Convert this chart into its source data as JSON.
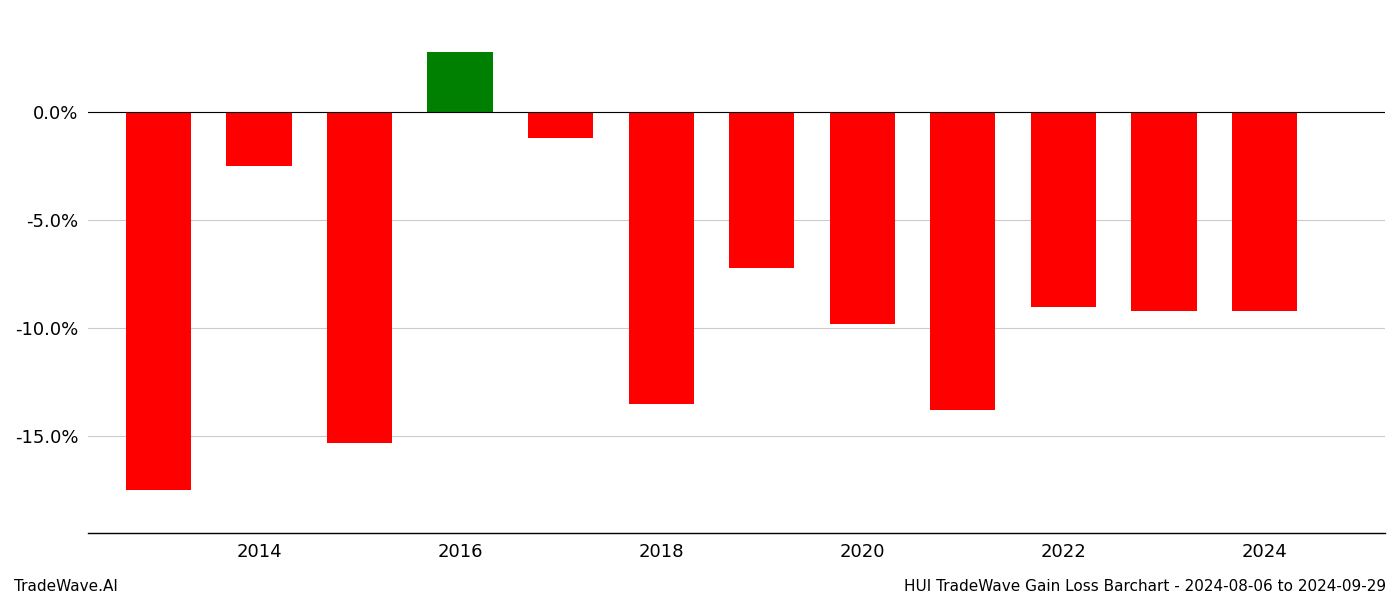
{
  "years": [
    2013,
    2014,
    2015,
    2016,
    2017,
    2018,
    2019,
    2020,
    2021,
    2022,
    2023,
    2024
  ],
  "values": [
    -17.5,
    -2.5,
    -15.3,
    2.8,
    -1.2,
    -13.5,
    -7.2,
    -9.8,
    -13.8,
    -9.0,
    -9.2,
    -9.2
  ],
  "bar_colors": [
    "red",
    "red",
    "red",
    "green",
    "red",
    "red",
    "red",
    "red",
    "red",
    "red",
    "red",
    "red"
  ],
  "footer_left": "TradeWave.AI",
  "footer_right": "HUI TradeWave Gain Loss Barchart - 2024-08-06 to 2024-09-29",
  "ylim_min": -19.5,
  "ylim_max": 4.5,
  "yticks": [
    0.0,
    -5.0,
    -10.0,
    -15.0
  ],
  "xticks": [
    2014,
    2016,
    2018,
    2020,
    2022,
    2024
  ],
  "background_color": "#ffffff",
  "grid_color": "#cccccc",
  "bar_width": 0.65
}
